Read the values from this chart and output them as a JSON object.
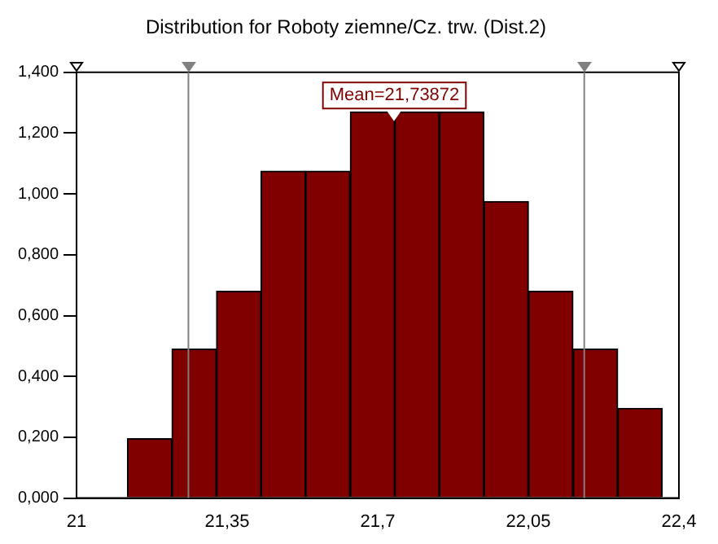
{
  "chart_data": {
    "type": "histogram",
    "title": "Distribution for Roboty ziemne/Cz. trw. (Dist.2)",
    "bins": [
      21.118,
      21.222,
      21.325,
      21.429,
      21.532,
      21.636,
      21.74,
      21.843,
      21.947,
      22.05,
      22.154,
      22.258,
      22.361
    ],
    "values": [
      0.195,
      0.49,
      0.68,
      1.075,
      1.075,
      1.27,
      1.27,
      1.27,
      0.975,
      0.68,
      0.49,
      0.295
    ],
    "color": "#800000",
    "xlim": [
      21,
      22.4
    ],
    "xticks": [
      21,
      {
        "value": 21.35,
        "label": "21,35"
      },
      {
        "value": 21.7,
        "label": "21,7"
      },
      {
        "value": 22.05,
        "label": "22,05"
      },
      {
        "value": 22.4,
        "label": "22,4"
      }
    ],
    "ylim": [
      0,
      1.4
    ],
    "yticks": [
      {
        "value": 0,
        "label": "0,000"
      },
      {
        "value": 0.2,
        "label": "0,200"
      },
      {
        "value": 0.4,
        "label": "0,400"
      },
      {
        "value": 0.6,
        "label": "0,600"
      },
      {
        "value": 0.8,
        "label": "0,800"
      },
      {
        "value": 1.0,
        "label": "1,000"
      },
      {
        "value": 1.2,
        "label": "1,200"
      },
      {
        "value": 1.4,
        "label": "1,400"
      }
    ],
    "ref_lines": [
      {
        "axis": "x",
        "value": 21.26,
        "color": "#808080"
      },
      {
        "axis": "x",
        "value": 22.18,
        "color": "#808080"
      }
    ],
    "annotations": [
      {
        "text": "Mean=21,73872",
        "x": 21.73872,
        "y": 1.27
      }
    ],
    "grid": false,
    "legend": false
  }
}
